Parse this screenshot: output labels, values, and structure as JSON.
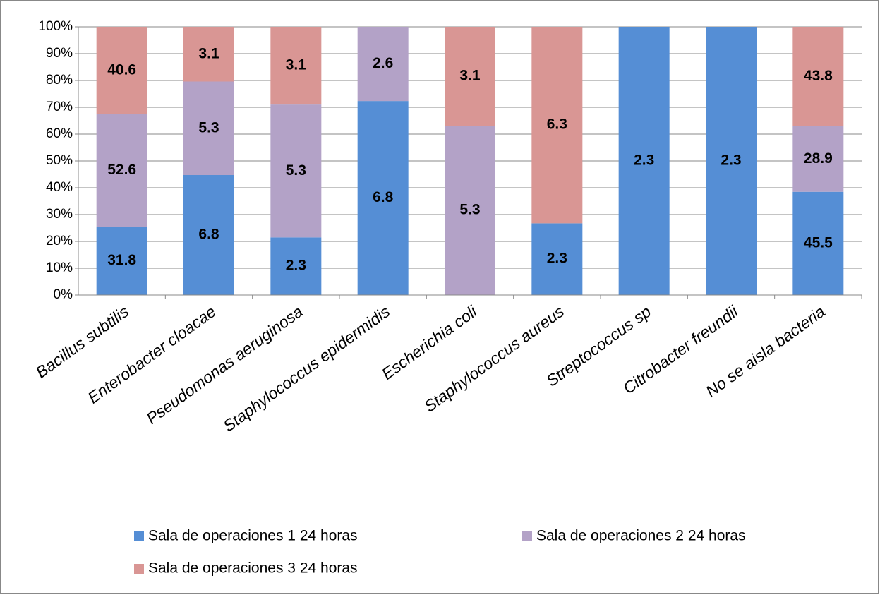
{
  "chart_data": {
    "type": "bar",
    "stack": "percent",
    "categories": [
      "Bacillus subtilis",
      "Enterobacter cloacae",
      "Pseudomonas aeruginosa",
      "Staphylococcus epidermidis",
      "Escherichia coli",
      "Staphylococcus aureus",
      "Streptococcus sp",
      "Citrobacter freundii",
      "No se aisla bacteria"
    ],
    "series": [
      {
        "name": "Sala de operaciones 1 24 horas",
        "color": "#558ed5",
        "values": [
          31.8,
          6.8,
          2.3,
          6.8,
          null,
          2.3,
          2.3,
          2.3,
          45.5
        ]
      },
      {
        "name": "Sala de operaciones 2 24 horas",
        "color": "#b3a2c7",
        "values": [
          52.6,
          5.3,
          5.3,
          2.6,
          5.3,
          null,
          null,
          null,
          28.9
        ]
      },
      {
        "name": "Sala de operaciones 3 24 horas",
        "color": "#d99694",
        "values": [
          40.6,
          3.1,
          3.1,
          null,
          3.1,
          6.3,
          null,
          null,
          43.8
        ]
      }
    ],
    "ylim": [
      0,
      100
    ],
    "yticks": [
      {
        "value": 0,
        "label": "0%"
      },
      {
        "value": 10,
        "label": "10%"
      },
      {
        "value": 20,
        "label": "20%"
      },
      {
        "value": 30,
        "label": "30%"
      },
      {
        "value": 40,
        "label": "40%"
      },
      {
        "value": 50,
        "label": "50%"
      },
      {
        "value": 60,
        "label": "60%"
      },
      {
        "value": 70,
        "label": "70%"
      },
      {
        "value": 80,
        "label": "80%"
      },
      {
        "value": 90,
        "label": "90%"
      },
      {
        "value": 100,
        "label": "100%"
      }
    ],
    "grid": true,
    "legend": "bottom"
  }
}
